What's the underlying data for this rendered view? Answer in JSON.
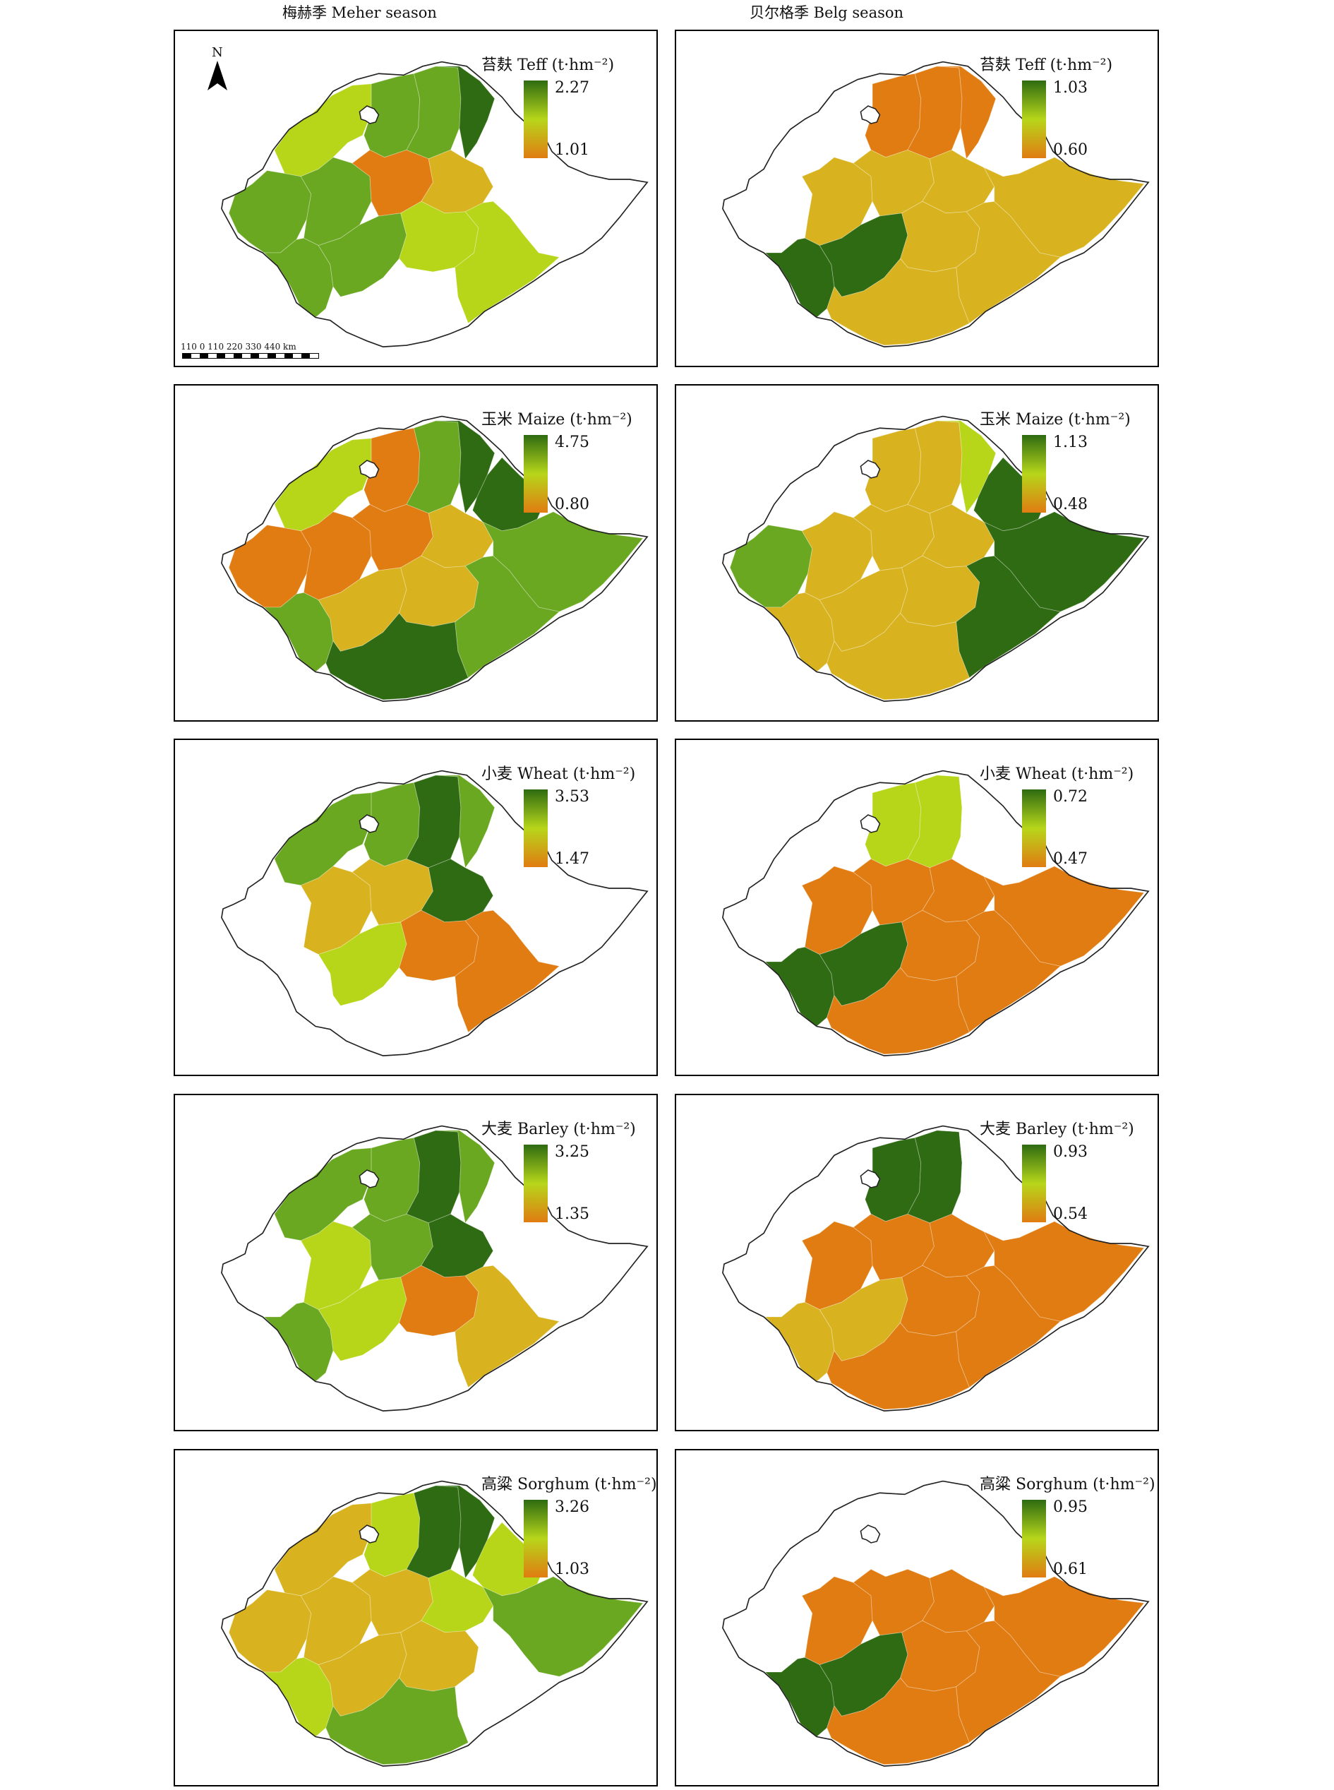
{
  "columns": {
    "meher": "梅赫季 Meher season",
    "belg": "贝尔格季 Belg season"
  },
  "map_extras": {
    "north_label": "N",
    "scale_labels": "110  0   110  220  330  440 km"
  },
  "colors": {
    "high": "#2e6b12",
    "mid_high": "#6aa821",
    "mid": "#b7d61a",
    "mid_low": "#d8b31f",
    "low": "#e07c12",
    "none": "#ffffff",
    "outline": "#222222"
  },
  "panels": [
    {
      "crop": "Teff",
      "season": "Meher",
      "legend_title": "苔麸 Teff (t·hm⁻²)",
      "max": "2.27",
      "min": "1.01"
    },
    {
      "crop": "Teff",
      "season": "Belg",
      "legend_title": "苔麸 Teff (t·hm⁻²)",
      "max": "1.03",
      "min": "0.60"
    },
    {
      "crop": "Maize",
      "season": "Meher",
      "legend_title": "玉米 Maize (t·hm⁻²)",
      "max": "4.75",
      "min": "0.80"
    },
    {
      "crop": "Maize",
      "season": "Belg",
      "legend_title": "玉米 Maize (t·hm⁻²)",
      "max": "1.13",
      "min": "0.48"
    },
    {
      "crop": "Wheat",
      "season": "Meher",
      "legend_title": "小麦 Wheat (t·hm⁻²)",
      "max": "3.53",
      "min": "1.47"
    },
    {
      "crop": "Wheat",
      "season": "Belg",
      "legend_title": "小麦 Wheat (t·hm⁻²)",
      "max": "0.72",
      "min": "0.47"
    },
    {
      "crop": "Barley",
      "season": "Meher",
      "legend_title": "大麦 Barley (t·hm⁻²)",
      "max": "3.25",
      "min": "1.35"
    },
    {
      "crop": "Barley",
      "season": "Belg",
      "legend_title": "大麦 Barley (t·hm⁻²)",
      "max": "0.93",
      "min": "0.54"
    },
    {
      "crop": "Sorghum",
      "season": "Meher",
      "legend_title": "高粱 Sorghum (t·hm⁻²)",
      "max": "3.26",
      "min": "1.03"
    },
    {
      "crop": "Sorghum",
      "season": "Belg",
      "legend_title": "高粱 Sorghum (t·hm⁻²)",
      "max": "0.95",
      "min": "0.61"
    }
  ]
}
